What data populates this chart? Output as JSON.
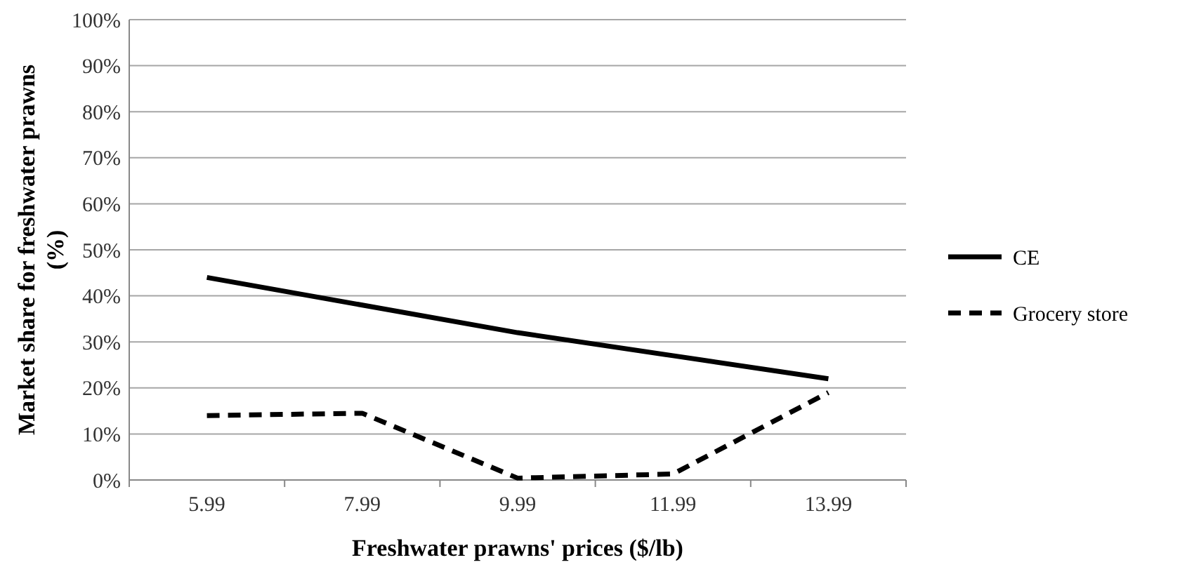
{
  "chart_data": {
    "type": "line",
    "xlabel": "Freshwater prawns' prices ($/lb)",
    "ylabel": "Market share for freshwater prawns (%)",
    "categories": [
      "5.99",
      "7.99",
      "9.99",
      "11.99",
      "13.99"
    ],
    "series": [
      {
        "name": "CE",
        "color": "#000000",
        "line_style": "solid",
        "values": [
          44,
          38,
          32,
          27,
          22
        ]
      },
      {
        "name": "Grocery store",
        "color": "#000000",
        "line_style": "dashed",
        "values": [
          14,
          14.5,
          0.4,
          1.3,
          19
        ]
      }
    ],
    "ylim": [
      0,
      100
    ],
    "yticks": [
      {
        "value": 0,
        "label": "0%"
      },
      {
        "value": 10,
        "label": "10%"
      },
      {
        "value": 20,
        "label": "20%"
      },
      {
        "value": 30,
        "label": "30%"
      },
      {
        "value": 40,
        "label": "40%"
      },
      {
        "value": 50,
        "label": "50%"
      },
      {
        "value": 60,
        "label": "60%"
      },
      {
        "value": 70,
        "label": "70%"
      },
      {
        "value": 80,
        "label": "80%"
      },
      {
        "value": 90,
        "label": "90%"
      },
      {
        "value": 100,
        "label": "100%"
      }
    ],
    "grid": "y",
    "legend": "right",
    "marker": "none"
  }
}
